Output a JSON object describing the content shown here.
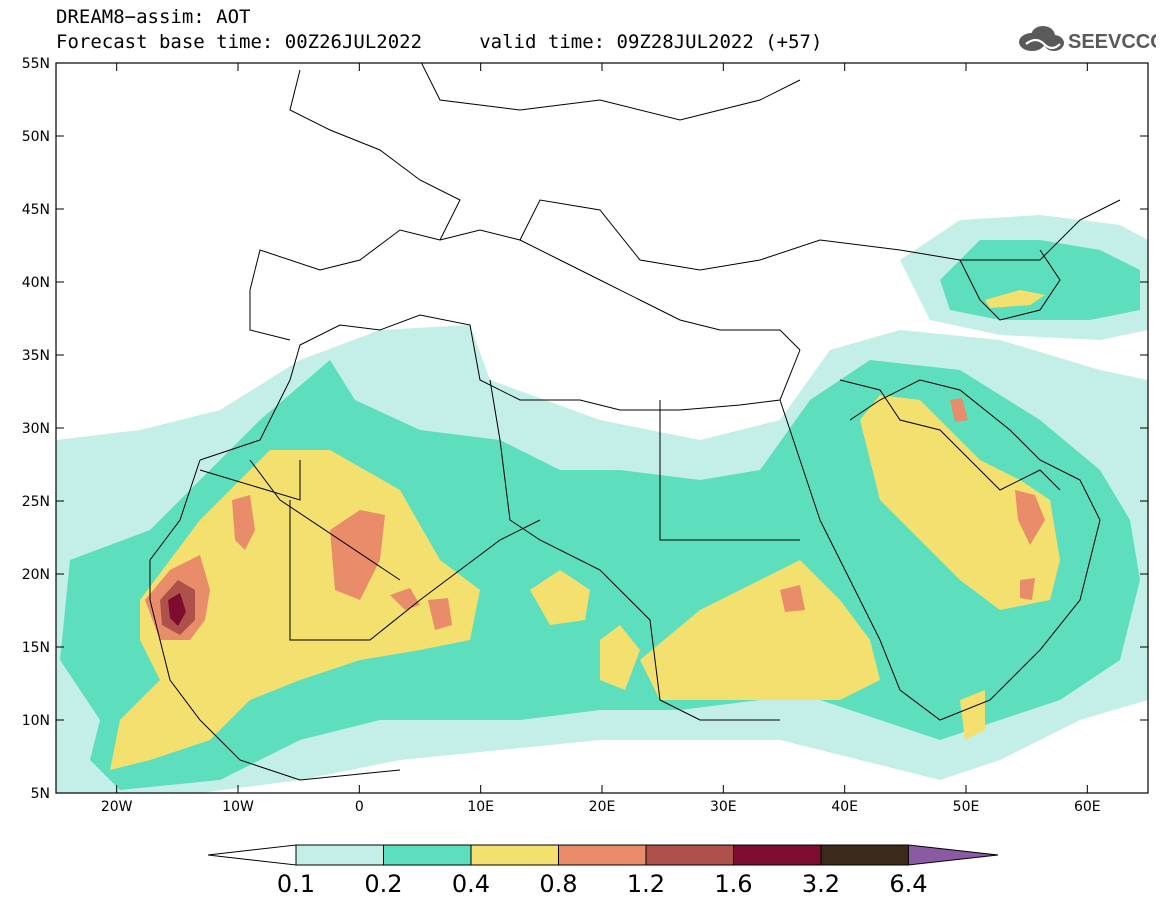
{
  "title": {
    "line1": "DREAM8−assim: AOT",
    "line2": "Forecast base time: 00Z26JUL2022     valid time: 09Z28JUL2022 (+57)"
  },
  "logo": {
    "text": "SEEVCCC",
    "icon": "cloud-icon"
  },
  "map": {
    "lat_range": [
      5,
      55
    ],
    "lon_range": [
      -25,
      65
    ],
    "lat_ticks": [
      "5N",
      "10N",
      "15N",
      "20N",
      "25N",
      "30N",
      "35N",
      "40N",
      "45N",
      "50N",
      "55N"
    ],
    "lon_ticks": [
      "20W",
      "10W",
      "0",
      "10E",
      "20E",
      "30E",
      "40E",
      "50E",
      "60E"
    ],
    "variable": "AOT"
  },
  "legend": {
    "levels": [
      "0.1",
      "0.2",
      "0.4",
      "0.8",
      "1.2",
      "1.6",
      "3.2",
      "6.4"
    ],
    "colors": [
      "#ffffff",
      "#c4eee8",
      "#5ddfbd",
      "#f4e06e",
      "#e88c6a",
      "#b0504a",
      "#7e0c2e",
      "#3b2a1a",
      "#8a5aa2"
    ]
  }
}
